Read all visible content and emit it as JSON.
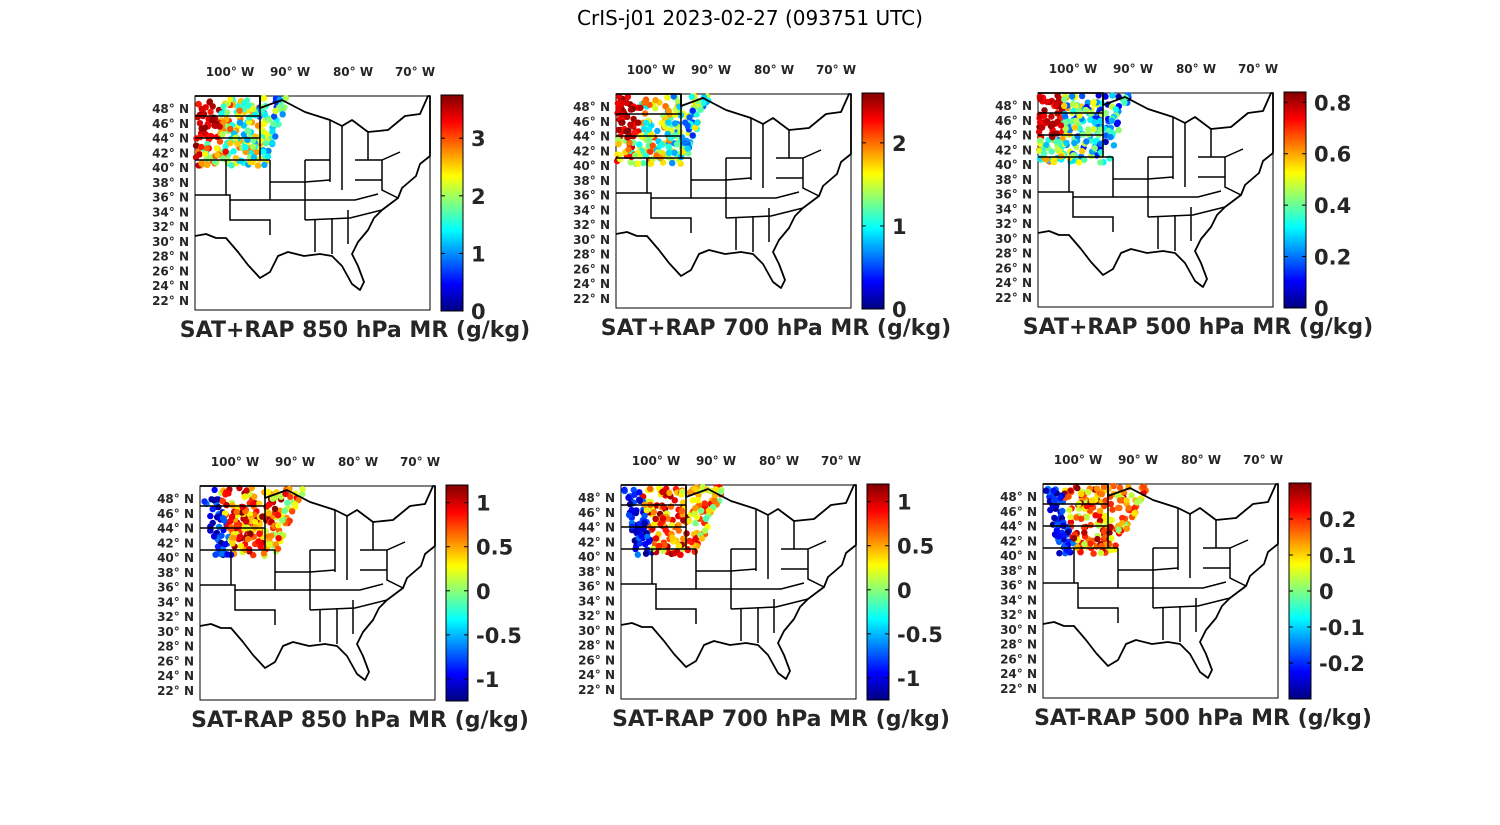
{
  "title": "CrIS-j01 2023-02-27 (093751 UTC)",
  "axes": {
    "lon_labels": [
      "100° W",
      "90° W",
      "80° W",
      "70° W"
    ],
    "lat_labels": [
      "48° N",
      "46° N",
      "44° N",
      "42° N",
      "40° N",
      "38° N",
      "36° N",
      "34° N",
      "32° N",
      "30° N",
      "28° N",
      "26° N",
      "24° N",
      "22° N"
    ]
  },
  "colormap": "jet",
  "panels": [
    {
      "caption": "SAT+RAP 850 hPa MR (g/kg)",
      "colorbar": {
        "min": 0,
        "max": 3.75,
        "ticks": [
          "0",
          "1",
          "2",
          "3"
        ],
        "tick_values": [
          0,
          1,
          2,
          3
        ]
      },
      "swath": "sum"
    },
    {
      "caption": "SAT+RAP 700 hPa MR (g/kg)",
      "colorbar": {
        "min": 0,
        "max": 2.6,
        "ticks": [
          "0",
          "1",
          "2"
        ],
        "tick_values": [
          0,
          1,
          2
        ]
      },
      "swath": "sum"
    },
    {
      "caption": "SAT+RAP 500 hPa MR (g/kg)",
      "colorbar": {
        "min": 0,
        "max": 0.84,
        "ticks": [
          "0",
          "0.2",
          "0.4",
          "0.6",
          "0.8"
        ],
        "tick_values": [
          0,
          0.2,
          0.4,
          0.6,
          0.8
        ]
      },
      "swath": "sum"
    },
    {
      "caption": "SAT-RAP 850 hPa MR (g/kg)",
      "colorbar": {
        "min": -1.25,
        "max": 1.2,
        "ticks": [
          "-1",
          "-0.5",
          "0",
          "0.5",
          "1"
        ],
        "tick_values": [
          -1,
          -0.5,
          0,
          0.5,
          1
        ]
      },
      "swath": "diff"
    },
    {
      "caption": "SAT-RAP 700 hPa MR (g/kg)",
      "colorbar": {
        "min": -1.25,
        "max": 1.2,
        "ticks": [
          "-1",
          "-0.5",
          "0",
          "0.5",
          "1"
        ],
        "tick_values": [
          -1,
          -0.5,
          0,
          0.5,
          1
        ]
      },
      "swath": "diff"
    },
    {
      "caption": "SAT-RAP 500 hPa MR (g/kg)",
      "colorbar": {
        "min": -0.3,
        "max": 0.3,
        "ticks": [
          "-0.2",
          "-0.1",
          "0",
          "0.1",
          "0.2"
        ],
        "tick_values": [
          -0.2,
          -0.1,
          0,
          0.1,
          0.2
        ]
      },
      "swath": "diff"
    }
  ]
}
